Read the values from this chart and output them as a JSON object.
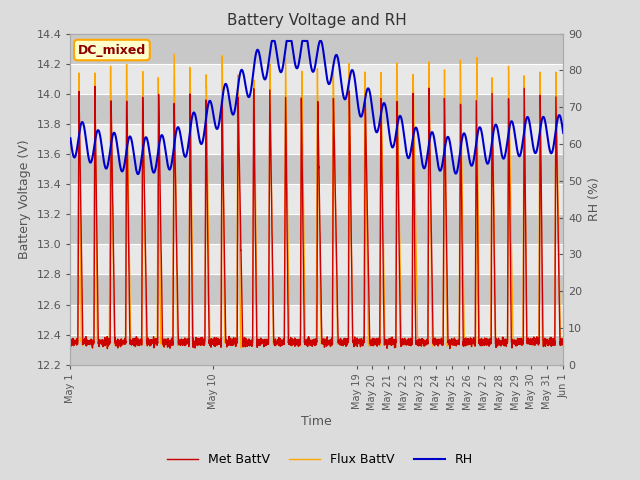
{
  "title": "Battery Voltage and RH",
  "xlabel": "Time",
  "ylabel_left": "Battery Voltage (V)",
  "ylabel_right": "RH (%)",
  "annotation": "DC_mixed",
  "ylim_left": [
    12.2,
    14.4
  ],
  "ylim_right": [
    0,
    90
  ],
  "yticks_left": [
    12.2,
    12.4,
    12.6,
    12.8,
    13.0,
    13.2,
    13.4,
    13.6,
    13.8,
    14.0,
    14.2,
    14.4
  ],
  "yticks_right": [
    0,
    10,
    20,
    30,
    40,
    50,
    60,
    70,
    80,
    90
  ],
  "legend_labels": [
    "Met BattV",
    "Flux BattV",
    "RH"
  ],
  "met_color": "#CC0000",
  "flux_color": "#FFA500",
  "rh_color": "#0000CC",
  "bg_color": "#DCDCDC",
  "plot_bg_color": "#E8E8E8",
  "line_width": 1.0,
  "tick_label_color": "#555555",
  "grid_color": "#FFFFFF",
  "n_days": 31,
  "band_color_dark": "#C8C8C8",
  "band_color_light": "#E8E8E8"
}
